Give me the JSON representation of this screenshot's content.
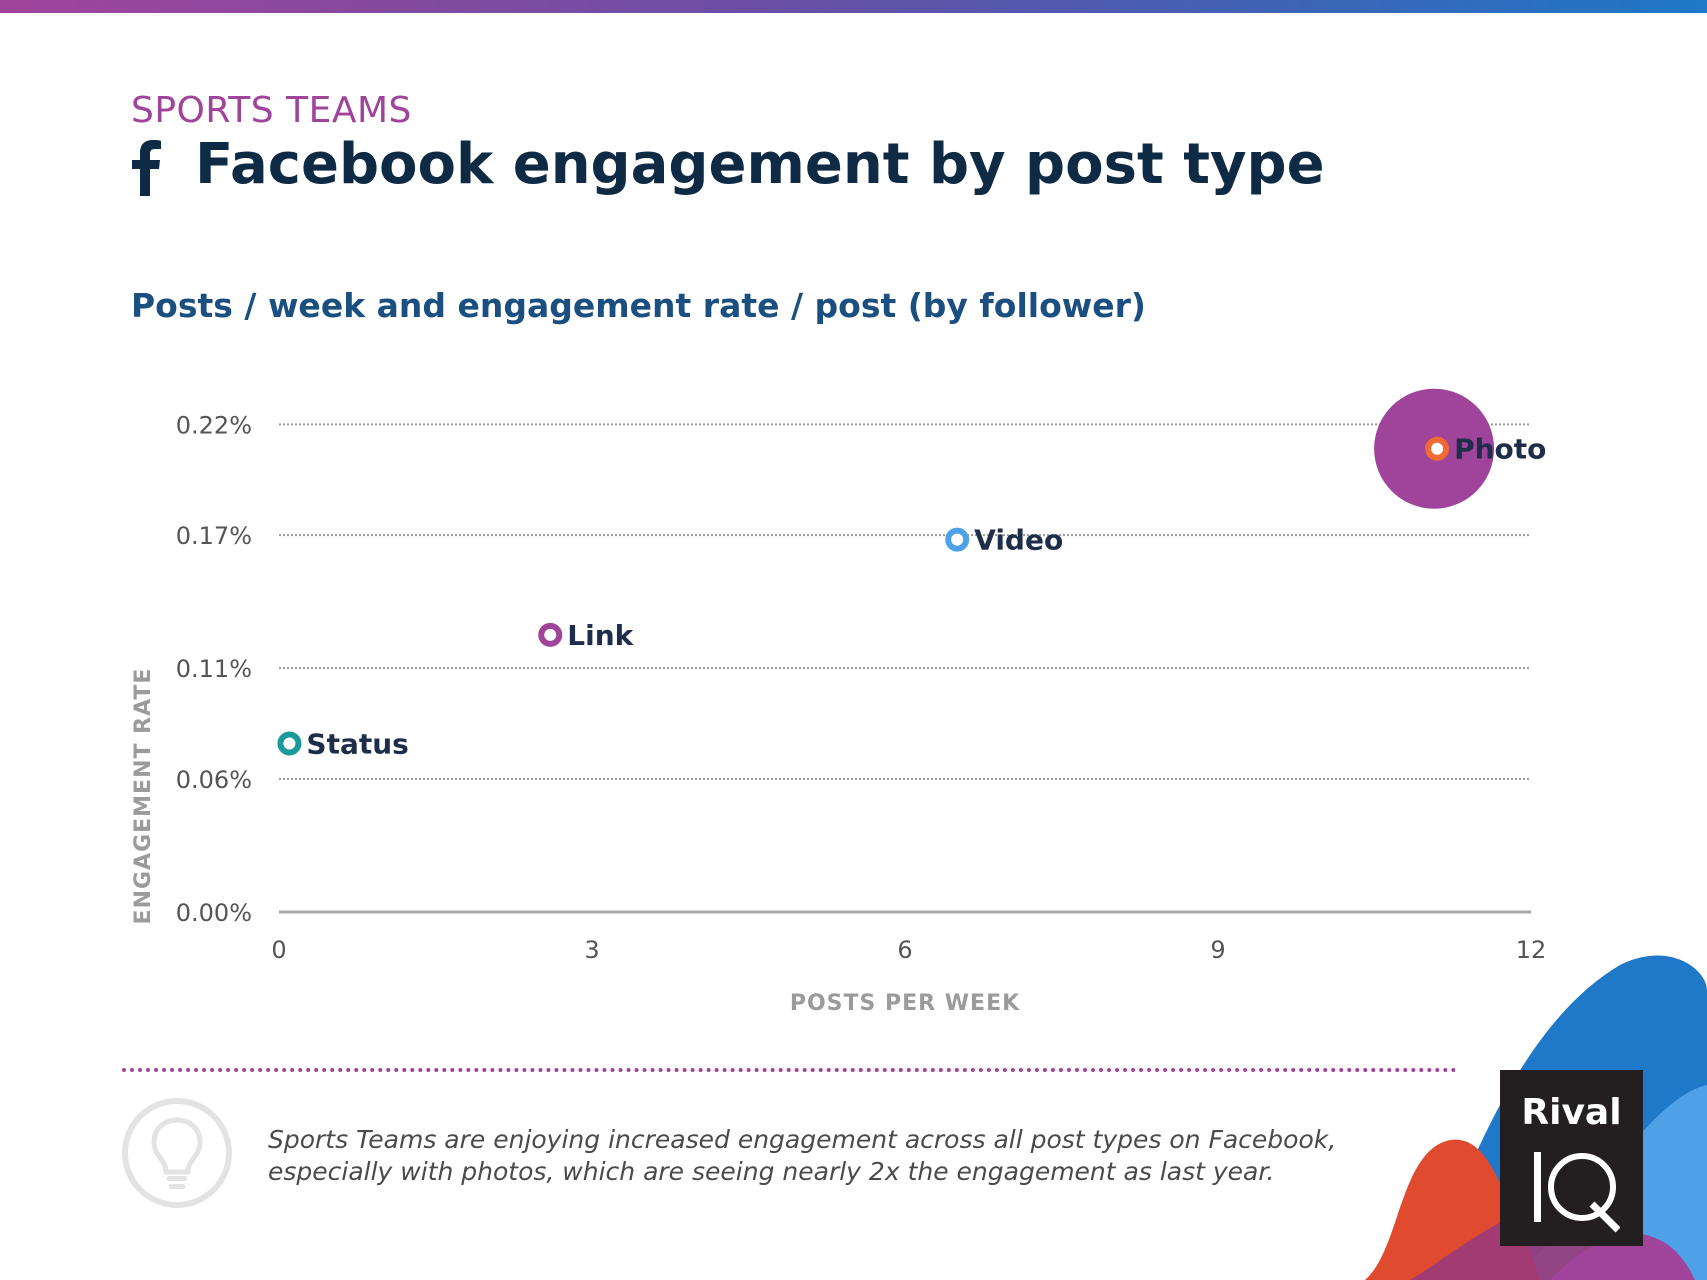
{
  "header": {
    "category": "SPORTS TEAMS",
    "title": "Facebook engagement by post type",
    "subtitle": "Posts / week and engagement rate / post (by follower)"
  },
  "chart_data": {
    "type": "scatter",
    "xlabel": "POSTS PER WEEK",
    "ylabel": "ENGAGEMENT RATE",
    "xlim": [
      0,
      12
    ],
    "ylim": [
      0,
      0.24
    ],
    "x_ticks": [
      0,
      3,
      6,
      9,
      12
    ],
    "x_tick_labels": [
      "0",
      "3",
      "6",
      "9",
      "12"
    ],
    "y_ticks": [
      0.0,
      0.06,
      0.11,
      0.17,
      0.22
    ],
    "y_tick_labels": [
      "0.00%",
      "0.06%",
      "0.11%",
      "0.17%",
      "0.22%"
    ],
    "grid": true,
    "points": [
      {
        "label": "Status",
        "x": 0.1,
        "y": 0.076,
        "color": "#1a9a9a"
      },
      {
        "label": "Link",
        "x": 2.6,
        "y": 0.125,
        "color": "#a0449b"
      },
      {
        "label": "Video",
        "x": 6.5,
        "y": 0.168,
        "color": "#4ea1e6"
      },
      {
        "label": "Photo",
        "x": 11.1,
        "y": 0.209,
        "color": "#f06a35",
        "highlight_color": "#a0449b"
      }
    ]
  },
  "insight": {
    "text": "Sports Teams are enjoying increased engagement across all post types on Facebook, especially with photos, which are seeing nearly 2x the engagement as last year."
  },
  "colors": {
    "brand_purple": "#a0449b",
    "title_navy": "#0e2a45",
    "subtitle_blue": "#1a4f80"
  },
  "logo": {
    "top_word": "Rival",
    "bottom_word": "IQ"
  }
}
